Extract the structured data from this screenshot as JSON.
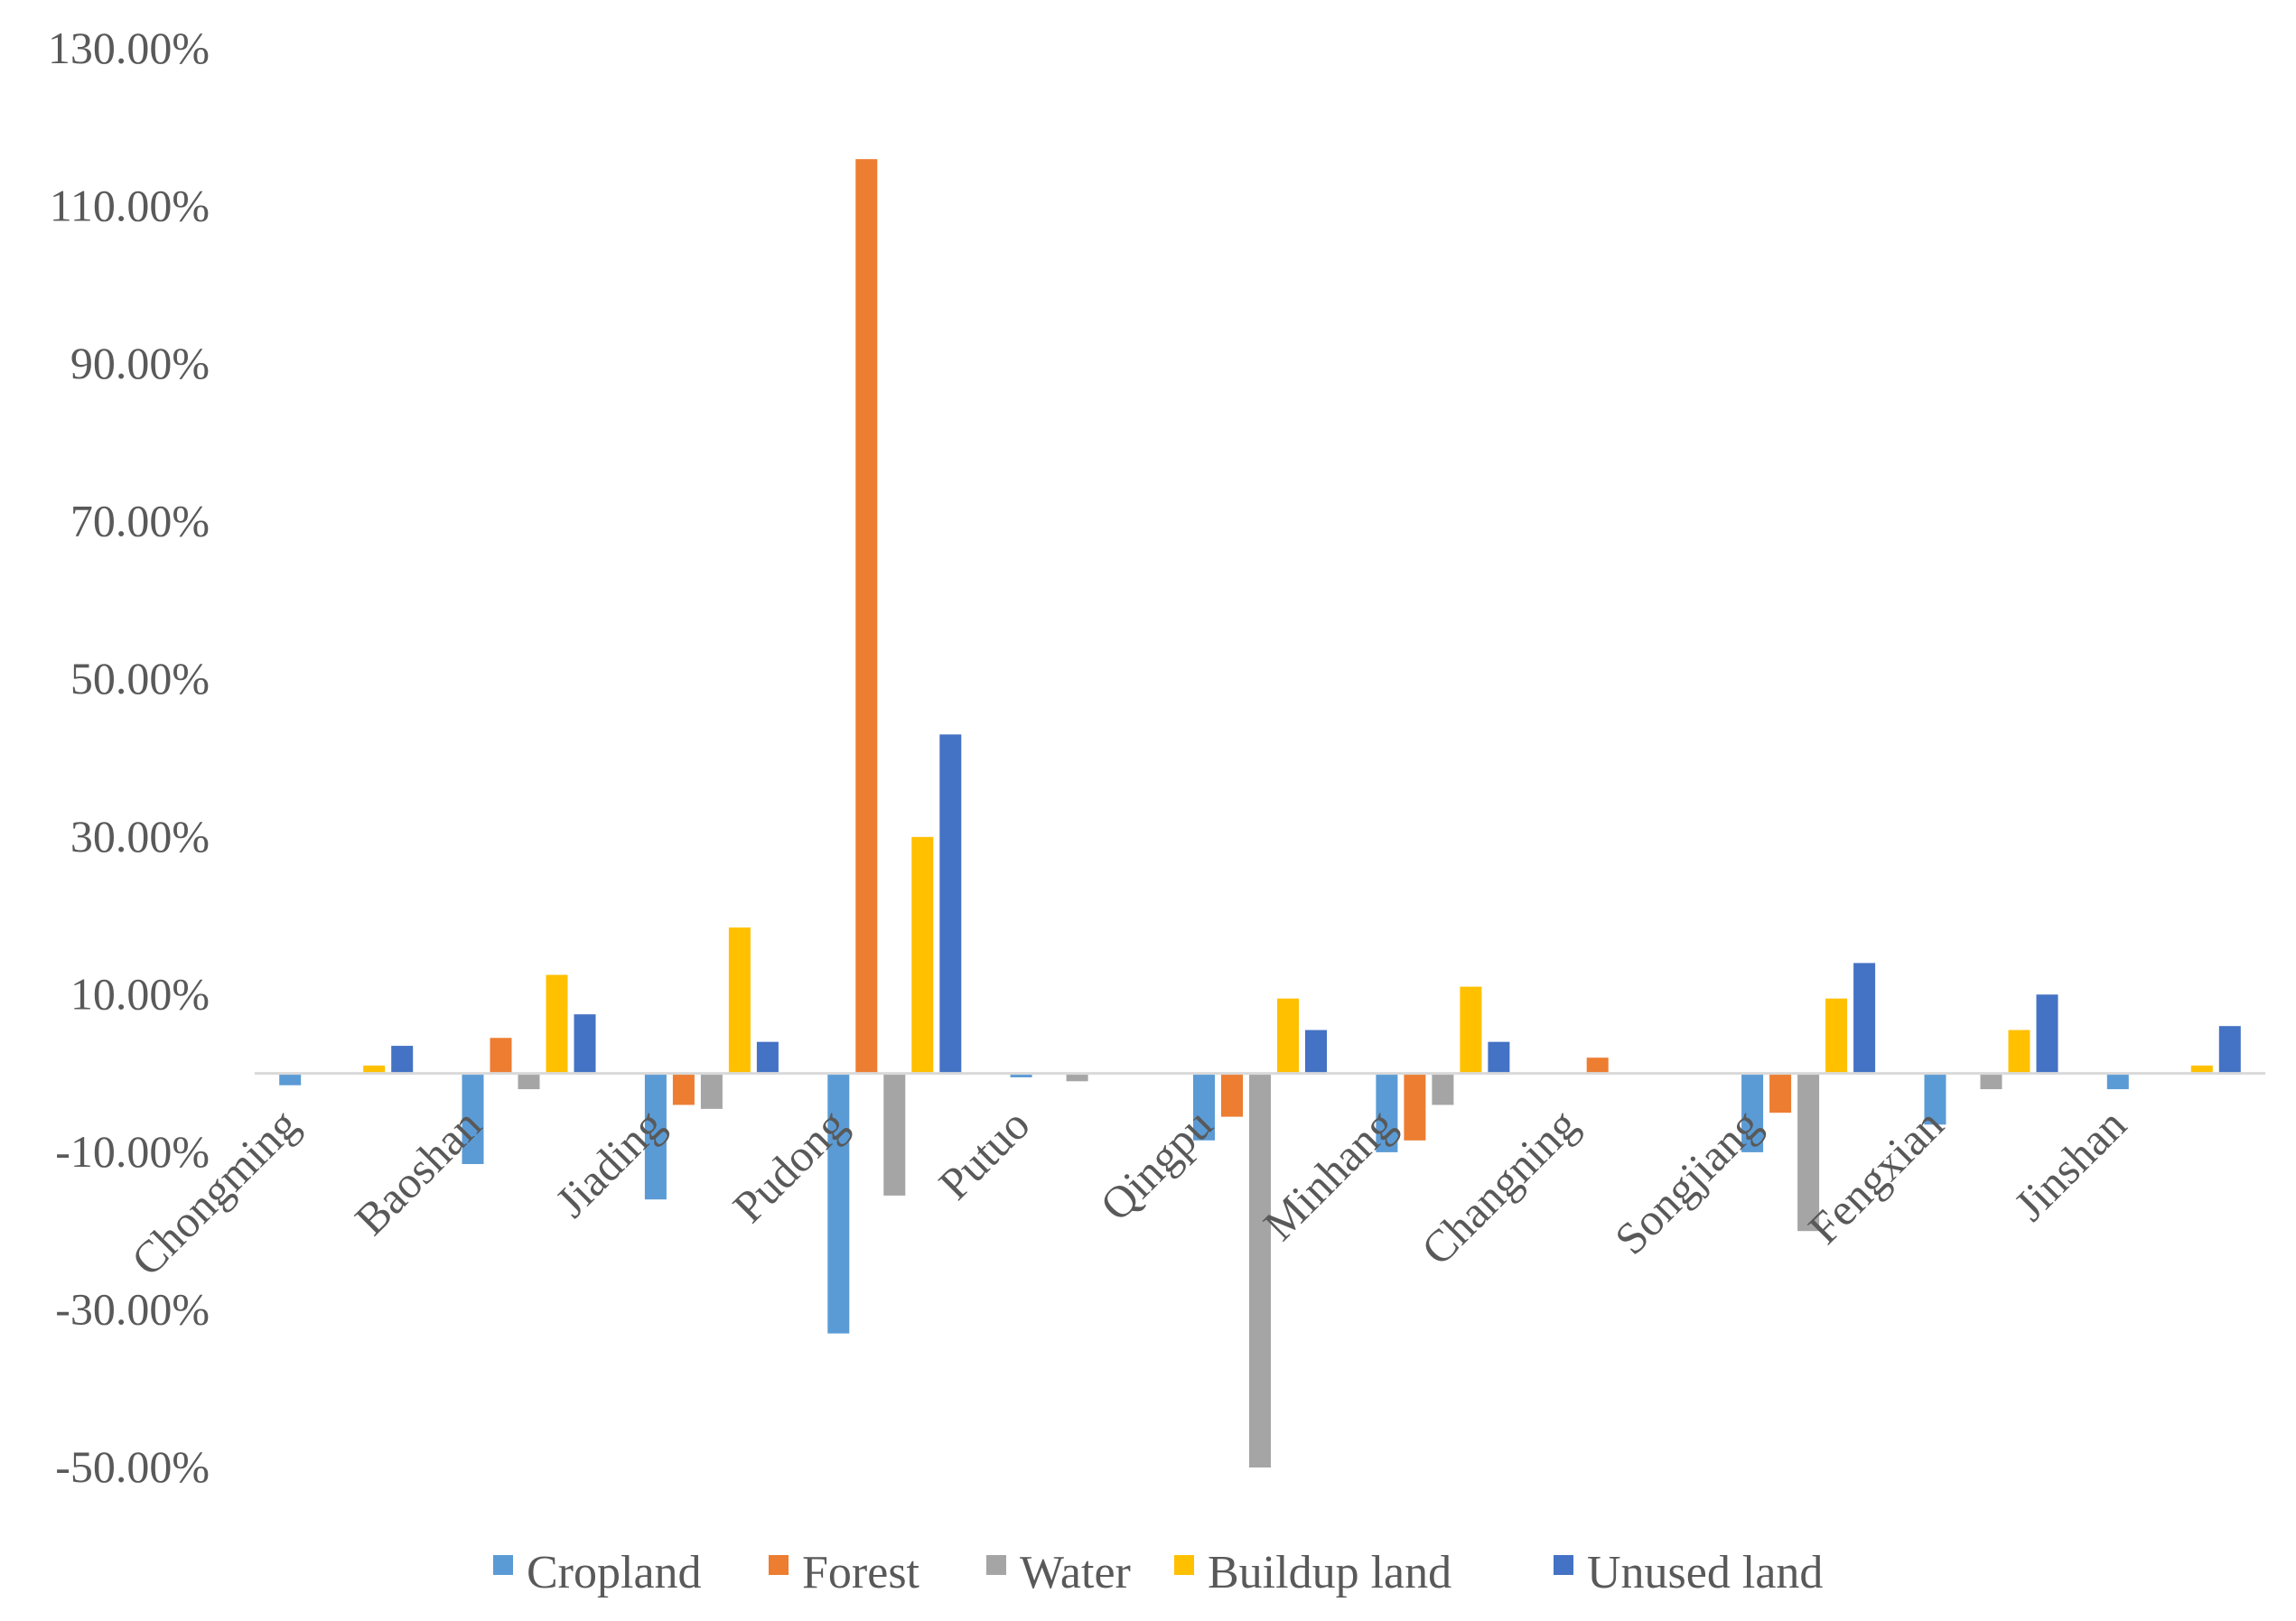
{
  "chart_data": {
    "type": "bar",
    "categories": [
      "Chongming",
      "Baoshan",
      "Jiading",
      "Pudong",
      "Putuo",
      "Qingpu",
      "Minhang",
      "Changning",
      "Songjiang",
      "Fengxian",
      "Jinshan"
    ],
    "series": [
      {
        "name": "Cropland",
        "color": "#5B9BD5",
        "values": [
          -1.5,
          -11.5,
          -16,
          -33,
          -0.5,
          -8.5,
          -10,
          0,
          -10,
          -6.5,
          -2
        ]
      },
      {
        "name": "Forest",
        "color": "#ED7D31",
        "values": [
          0,
          4.5,
          -4,
          116,
          0,
          -5.5,
          -8.5,
          2,
          -5,
          0,
          0
        ]
      },
      {
        "name": "Water",
        "color": "#A5A5A5",
        "values": [
          0,
          -2,
          -4.5,
          -15.5,
          -1,
          -50,
          -4,
          0,
          -20,
          -2,
          0
        ]
      },
      {
        "name": "Buildup land",
        "color": "#FFC000",
        "values": [
          1,
          12.5,
          18.5,
          30,
          0,
          9.5,
          11,
          0,
          9.5,
          5.5,
          1
        ]
      },
      {
        "name": "Unused land",
        "color": "#4472C4",
        "values": [
          3.5,
          7.5,
          4,
          43,
          0,
          5.5,
          4,
          0,
          14,
          10,
          6
        ]
      }
    ],
    "y_ticks": [
      "130.00%",
      "110.00%",
      "90.00%",
      "70.00%",
      "50.00%",
      "30.00%",
      "10.00%",
      "-10.00%",
      "-30.00%",
      "-50.00%"
    ],
    "y_tick_values": [
      130,
      110,
      90,
      70,
      50,
      30,
      10,
      -10,
      -30,
      -50
    ],
    "ylim": [
      -50,
      130
    ],
    "unit": "%",
    "grid": false,
    "legend": "bottom",
    "title": "",
    "xlabel": "",
    "ylabel": ""
  }
}
